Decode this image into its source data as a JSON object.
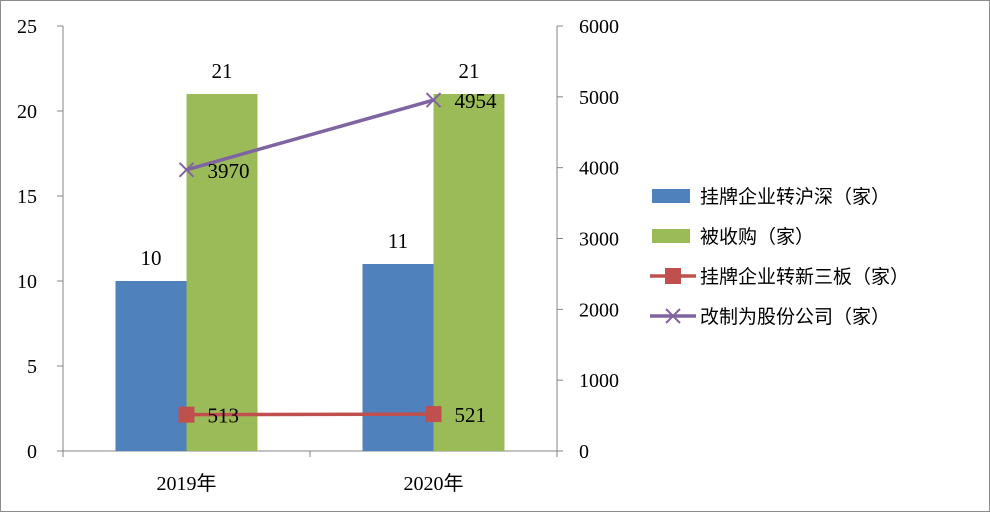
{
  "chart_data": {
    "type": "bar",
    "categories": [
      "2019年",
      "2020年"
    ],
    "series": [
      {
        "name": "挂牌企业转沪深（家）",
        "type": "bar",
        "axis": "left",
        "color": "#4F81BD",
        "values": [
          10,
          11
        ],
        "labels": [
          "10",
          "11"
        ]
      },
      {
        "name": "被收购（家）",
        "type": "bar",
        "axis": "left",
        "color": "#9BBB59",
        "values": [
          21,
          21
        ],
        "labels": [
          "21",
          "21"
        ]
      },
      {
        "name": "挂牌企业转新三板（家）",
        "type": "line",
        "axis": "right",
        "color": "#C0504D",
        "marker": "square",
        "values": [
          513,
          521
        ],
        "labels": [
          "513",
          "521"
        ]
      },
      {
        "name": "改制为股份公司（家）",
        "type": "line",
        "axis": "right",
        "color": "#8064A2",
        "marker": "x",
        "values": [
          3970,
          4954
        ],
        "labels": [
          "3970",
          "4954"
        ]
      }
    ],
    "y_left": {
      "min": 0,
      "max": 25,
      "ticks": [
        "0",
        "5",
        "10",
        "15",
        "20",
        "25"
      ]
    },
    "y_right": {
      "min": 0,
      "max": 6000,
      "ticks": [
        "0",
        "1000",
        "2000",
        "3000",
        "4000",
        "5000",
        "6000"
      ]
    },
    "title": "",
    "xlabel": "",
    "ylabel": "",
    "grid": false,
    "legend_position": "right"
  }
}
